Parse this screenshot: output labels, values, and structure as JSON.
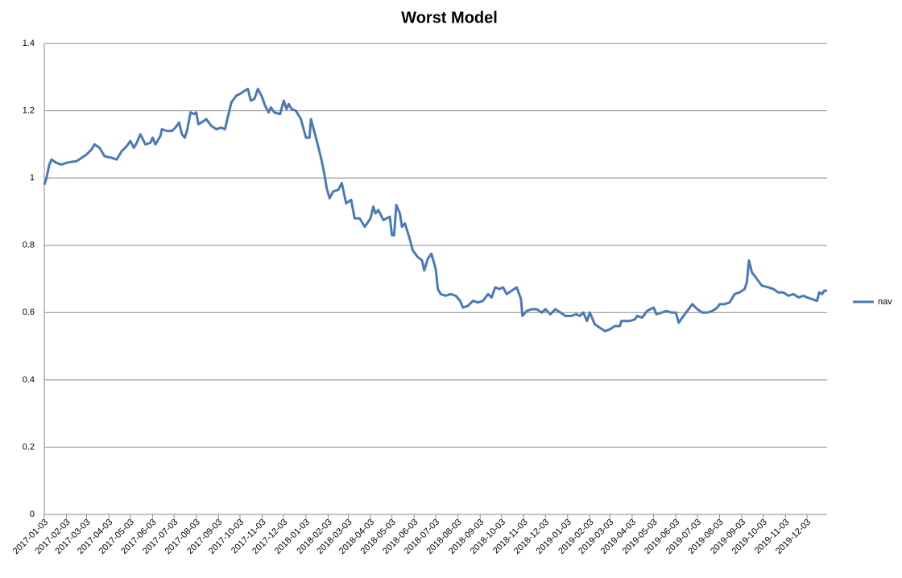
{
  "chart_data": {
    "type": "line",
    "title": "Worst Model",
    "x": [
      "2017-01-03",
      "2017-01-06",
      "2017-01-10",
      "2017-01-13",
      "2017-01-20",
      "2017-01-27",
      "2017-02-03",
      "2017-02-10",
      "2017-02-17",
      "2017-02-24",
      "2017-03-03",
      "2017-03-10",
      "2017-03-14",
      "2017-03-21",
      "2017-03-28",
      "2017-04-07",
      "2017-04-14",
      "2017-04-21",
      "2017-04-28",
      "2017-05-03",
      "2017-05-08",
      "2017-05-12",
      "2017-05-17",
      "2017-05-24",
      "2017-05-31",
      "2017-06-03",
      "2017-06-07",
      "2017-06-14",
      "2017-06-16",
      "2017-06-23",
      "2017-06-30",
      "2017-07-05",
      "2017-07-10",
      "2017-07-14",
      "2017-07-18",
      "2017-07-21",
      "2017-07-26",
      "2017-07-31",
      "2017-08-03",
      "2017-08-06",
      "2017-08-10",
      "2017-08-17",
      "2017-08-24",
      "2017-08-31",
      "2017-09-07",
      "2017-09-12",
      "2017-09-17",
      "2017-09-21",
      "2017-09-28",
      "2017-10-03",
      "2017-10-10",
      "2017-10-14",
      "2017-10-18",
      "2017-10-23",
      "2017-10-28",
      "2017-11-03",
      "2017-11-07",
      "2017-11-12",
      "2017-11-15",
      "2017-11-20",
      "2017-11-28",
      "2017-12-03",
      "2017-12-07",
      "2017-12-10",
      "2017-12-14",
      "2017-12-20",
      "2017-12-27",
      "2018-01-03",
      "2018-01-08",
      "2018-01-10",
      "2018-01-17",
      "2018-01-24",
      "2018-01-28",
      "2018-02-01",
      "2018-02-05",
      "2018-02-10",
      "2018-02-17",
      "2018-02-22",
      "2018-02-28",
      "2018-03-07",
      "2018-03-12",
      "2018-03-19",
      "2018-03-26",
      "2018-04-03",
      "2018-04-07",
      "2018-04-10",
      "2018-04-14",
      "2018-04-21",
      "2018-04-30",
      "2018-05-03",
      "2018-05-06",
      "2018-05-09",
      "2018-05-14",
      "2018-05-17",
      "2018-05-21",
      "2018-05-27",
      "2018-06-01",
      "2018-06-08",
      "2018-06-14",
      "2018-06-17",
      "2018-06-22",
      "2018-06-27",
      "2018-07-03",
      "2018-07-06",
      "2018-07-10",
      "2018-07-17",
      "2018-07-24",
      "2018-07-31",
      "2018-08-06",
      "2018-08-10",
      "2018-08-17",
      "2018-08-24",
      "2018-08-31",
      "2018-09-07",
      "2018-09-14",
      "2018-09-19",
      "2018-09-24",
      "2018-09-30",
      "2018-10-05",
      "2018-10-10",
      "2018-10-17",
      "2018-10-24",
      "2018-10-30",
      "2018-11-01",
      "2018-11-07",
      "2018-11-14",
      "2018-11-21",
      "2018-11-28",
      "2018-12-03",
      "2018-12-10",
      "2018-12-17",
      "2018-12-24",
      "2018-12-31",
      "2019-01-08",
      "2019-01-15",
      "2019-01-20",
      "2019-01-25",
      "2019-01-30",
      "2019-02-03",
      "2019-02-10",
      "2019-02-17",
      "2019-02-24",
      "2019-03-03",
      "2019-03-10",
      "2019-03-17",
      "2019-03-19",
      "2019-03-24",
      "2019-03-31",
      "2019-04-07",
      "2019-04-10",
      "2019-04-17",
      "2019-04-24",
      "2019-05-03",
      "2019-05-07",
      "2019-05-14",
      "2019-05-21",
      "2019-05-28",
      "2019-06-03",
      "2019-06-07",
      "2019-06-12",
      "2019-06-19",
      "2019-06-26",
      "2019-07-03",
      "2019-07-10",
      "2019-07-17",
      "2019-07-24",
      "2019-07-31",
      "2019-08-03",
      "2019-08-10",
      "2019-08-17",
      "2019-08-24",
      "2019-08-31",
      "2019-09-07",
      "2019-09-10",
      "2019-09-13",
      "2019-09-17",
      "2019-09-24",
      "2019-10-01",
      "2019-10-10",
      "2019-10-17",
      "2019-10-24",
      "2019-10-31",
      "2019-11-07",
      "2019-11-14",
      "2019-11-21",
      "2019-11-28",
      "2019-12-03",
      "2019-12-10",
      "2019-12-17",
      "2019-12-20",
      "2019-12-24",
      "2019-12-27",
      "2019-12-31"
    ],
    "series": [
      {
        "name": "nav",
        "color": "#4a7ab5",
        "values": [
          0.98,
          1.0,
          1.04,
          1.055,
          1.045,
          1.04,
          1.045,
          1.048,
          1.05,
          1.06,
          1.07,
          1.085,
          1.1,
          1.09,
          1.065,
          1.06,
          1.055,
          1.08,
          1.095,
          1.11,
          1.09,
          1.105,
          1.13,
          1.1,
          1.105,
          1.12,
          1.1,
          1.125,
          1.145,
          1.14,
          1.14,
          1.15,
          1.165,
          1.13,
          1.12,
          1.14,
          1.195,
          1.19,
          1.195,
          1.16,
          1.165,
          1.175,
          1.155,
          1.145,
          1.15,
          1.145,
          1.19,
          1.225,
          1.245,
          1.25,
          1.26,
          1.265,
          1.23,
          1.235,
          1.265,
          1.24,
          1.215,
          1.195,
          1.21,
          1.195,
          1.19,
          1.23,
          1.205,
          1.22,
          1.205,
          1.2,
          1.175,
          1.12,
          1.12,
          1.175,
          1.12,
          1.06,
          1.02,
          0.97,
          0.94,
          0.96,
          0.965,
          0.985,
          0.925,
          0.935,
          0.88,
          0.88,
          0.855,
          0.88,
          0.915,
          0.895,
          0.905,
          0.875,
          0.885,
          0.83,
          0.83,
          0.92,
          0.895,
          0.855,
          0.865,
          0.825,
          0.785,
          0.765,
          0.755,
          0.725,
          0.76,
          0.775,
          0.73,
          0.67,
          0.655,
          0.65,
          0.655,
          0.65,
          0.635,
          0.615,
          0.62,
          0.635,
          0.63,
          0.635,
          0.655,
          0.645,
          0.675,
          0.67,
          0.675,
          0.655,
          0.665,
          0.675,
          0.64,
          0.59,
          0.605,
          0.61,
          0.61,
          0.6,
          0.61,
          0.595,
          0.61,
          0.6,
          0.59,
          0.59,
          0.595,
          0.59,
          0.6,
          0.575,
          0.6,
          0.565,
          0.555,
          0.545,
          0.55,
          0.56,
          0.56,
          0.575,
          0.575,
          0.575,
          0.58,
          0.59,
          0.585,
          0.605,
          0.615,
          0.595,
          0.6,
          0.605,
          0.6,
          0.6,
          0.57,
          0.585,
          0.605,
          0.625,
          0.61,
          0.6,
          0.6,
          0.605,
          0.615,
          0.625,
          0.625,
          0.63,
          0.655,
          0.66,
          0.67,
          0.69,
          0.755,
          0.72,
          0.7,
          0.68,
          0.675,
          0.67,
          0.66,
          0.66,
          0.65,
          0.655,
          0.645,
          0.65,
          0.645,
          0.64,
          0.635,
          0.66,
          0.655,
          0.665,
          0.665
        ]
      }
    ],
    "xlim": [
      "2017-01-03",
      "2019-12-31"
    ],
    "xticks": [
      "2017-01-03",
      "2017-02-03",
      "2017-03-03",
      "2017-04-03",
      "2017-05-03",
      "2017-06-03",
      "2017-07-03",
      "2017-08-03",
      "2017-09-03",
      "2017-10-03",
      "2017-11-03",
      "2017-12-03",
      "2018-01-03",
      "2018-02-03",
      "2018-03-03",
      "2018-04-03",
      "2018-05-03",
      "2018-06-03",
      "2018-07-03",
      "2018-08-03",
      "2018-09-03",
      "2018-10-03",
      "2018-11-03",
      "2018-12-03",
      "2019-01-03",
      "2019-02-03",
      "2019-03-03",
      "2019-04-03",
      "2019-05-03",
      "2019-06-03",
      "2019-07-03",
      "2019-08-03",
      "2019-09-03",
      "2019-10-03",
      "2019-11-03",
      "2019-12-03"
    ],
    "ylim": [
      0,
      1.4
    ],
    "yticks": [
      0,
      0.2,
      0.4,
      0.6,
      0.8,
      1,
      1.2,
      1.4
    ],
    "grid": true,
    "legend": "right"
  }
}
